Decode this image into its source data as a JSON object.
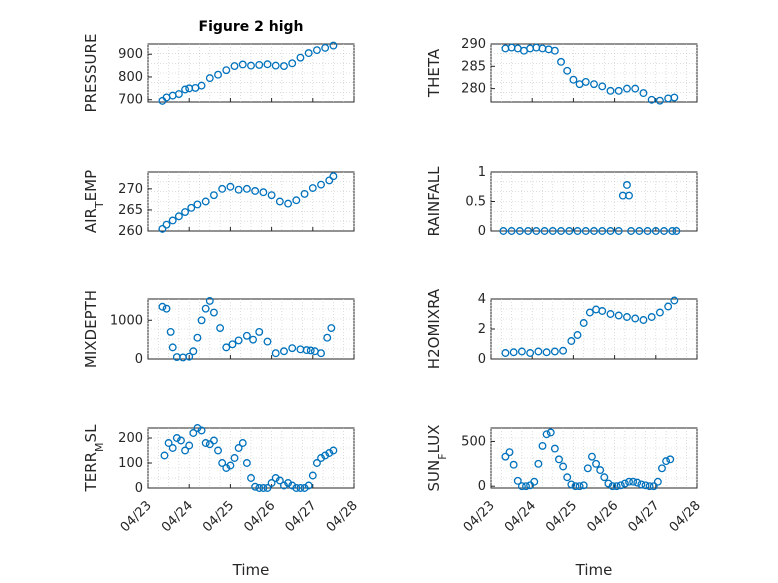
{
  "figure": {
    "title": "Figure 2 high",
    "xlabel": "Time"
  },
  "colors": {
    "series": "#0072BD",
    "axis": "#262626",
    "grid": "#c8c8c8"
  },
  "x_ticks": [
    "04/23",
    "04/24",
    "04/25",
    "04/26",
    "04/27",
    "04/28"
  ],
  "chart_data": [
    {
      "type": "scatter",
      "ylabel": "PRESSURE",
      "ylim": [
        690,
        945
      ],
      "yticks": [
        700,
        800,
        900
      ],
      "grid": "on",
      "xlim": [
        0,
        5
      ],
      "x": [
        0.35,
        0.45,
        0.6,
        0.75,
        0.9,
        1.0,
        1.15,
        1.3,
        1.5,
        1.7,
        1.9,
        2.1,
        2.3,
        2.5,
        2.7,
        2.9,
        3.1,
        3.3,
        3.5,
        3.7,
        3.9,
        4.1,
        4.3,
        4.5
      ],
      "y": [
        695,
        710,
        718,
        725,
        745,
        750,
        752,
        762,
        795,
        810,
        830,
        848,
        855,
        850,
        853,
        856,
        850,
        848,
        860,
        885,
        905,
        918,
        928,
        938
      ]
    },
    {
      "type": "scatter",
      "ylabel": "THETA",
      "ylim": [
        277,
        290
      ],
      "yticks": [
        280,
        285,
        290
      ],
      "grid": "on",
      "xlim": [
        0,
        5
      ],
      "x": [
        0.35,
        0.5,
        0.65,
        0.8,
        0.95,
        1.1,
        1.25,
        1.4,
        1.55,
        1.7,
        1.85,
        2.0,
        2.15,
        2.3,
        2.5,
        2.7,
        2.9,
        3.1,
        3.3,
        3.5,
        3.7,
        3.9,
        4.1,
        4.3,
        4.45
      ],
      "y": [
        289,
        289.2,
        289,
        288.5,
        289,
        289.2,
        289,
        288.8,
        288.5,
        286,
        284,
        282,
        281,
        281.5,
        281,
        280.5,
        279.5,
        279.5,
        280,
        280,
        279,
        277.5,
        277.3,
        277.8,
        278
      ]
    },
    {
      "type": "scatter",
      "ylabel": "AIR_TEMP",
      "ylim": [
        260,
        274
      ],
      "yticks": [
        260,
        265,
        270
      ],
      "grid": "on",
      "xlim": [
        0,
        5
      ],
      "x": [
        0.35,
        0.45,
        0.6,
        0.75,
        0.9,
        1.05,
        1.2,
        1.4,
        1.6,
        1.8,
        2.0,
        2.2,
        2.4,
        2.6,
        2.8,
        3.0,
        3.2,
        3.4,
        3.6,
        3.8,
        4.0,
        4.2,
        4.4,
        4.5
      ],
      "y": [
        260.5,
        261.5,
        262.5,
        263.5,
        264.5,
        265.5,
        266.3,
        267,
        268.5,
        270,
        270.5,
        269.8,
        270,
        269.5,
        269.2,
        268.5,
        267,
        266.5,
        267.3,
        268.8,
        270.2,
        271,
        272,
        273
      ]
    },
    {
      "type": "scatter",
      "ylabel": "RAINFALL",
      "ylim": [
        0,
        1
      ],
      "yticks": [
        0,
        0.5,
        1
      ],
      "grid": "on",
      "xlim": [
        0,
        5
      ],
      "x": [
        0.3,
        0.5,
        0.7,
        0.9,
        1.1,
        1.3,
        1.5,
        1.7,
        1.9,
        2.1,
        2.3,
        2.5,
        2.7,
        2.9,
        3.1,
        3.2,
        3.3,
        3.35,
        3.4,
        3.6,
        3.8,
        4.0,
        4.2,
        4.4,
        4.5
      ],
      "y": [
        0,
        0,
        0,
        0,
        0,
        0,
        0,
        0,
        0,
        0,
        0,
        0,
        0,
        0,
        0,
        0.6,
        0.78,
        0.6,
        0,
        0,
        0,
        0,
        0,
        0,
        0
      ]
    },
    {
      "type": "scatter",
      "ylabel": "MIXDEPTH",
      "ylim": [
        0,
        1550
      ],
      "yticks": [
        0,
        1000
      ],
      "grid": "on",
      "xlim": [
        0,
        5
      ],
      "x": [
        0.35,
        0.45,
        0.55,
        0.6,
        0.7,
        0.85,
        1.0,
        1.1,
        1.2,
        1.3,
        1.4,
        1.5,
        1.6,
        1.75,
        1.9,
        2.05,
        2.2,
        2.4,
        2.55,
        2.7,
        2.9,
        3.1,
        3.3,
        3.5,
        3.7,
        3.85,
        3.95,
        4.05,
        4.2,
        4.35,
        4.45
      ],
      "y": [
        1350,
        1300,
        700,
        300,
        50,
        40,
        60,
        200,
        550,
        1000,
        1300,
        1500,
        1200,
        800,
        300,
        380,
        480,
        600,
        500,
        700,
        450,
        150,
        200,
        280,
        250,
        230,
        220,
        200,
        150,
        550,
        800
      ]
    },
    {
      "type": "scatter",
      "ylabel": "H2OMIXRA",
      "ylim": [
        0,
        4
      ],
      "yticks": [
        0,
        2,
        4
      ],
      "grid": "on",
      "xlim": [
        0,
        5
      ],
      "x": [
        0.35,
        0.55,
        0.75,
        0.95,
        1.15,
        1.35,
        1.55,
        1.75,
        1.95,
        2.1,
        2.25,
        2.4,
        2.55,
        2.7,
        2.9,
        3.1,
        3.3,
        3.5,
        3.7,
        3.9,
        4.1,
        4.3,
        4.45
      ],
      "y": [
        0.4,
        0.45,
        0.5,
        0.4,
        0.5,
        0.45,
        0.5,
        0.55,
        1.2,
        1.6,
        2.4,
        3.1,
        3.3,
        3.2,
        3.0,
        2.9,
        2.8,
        2.7,
        2.6,
        2.8,
        3.1,
        3.5,
        3.9
      ]
    },
    {
      "type": "scatter",
      "ylabel": "TERR_MSL",
      "ylim": [
        0,
        240
      ],
      "yticks": [
        0,
        100,
        200
      ],
      "grid": "on",
      "xlim": [
        0,
        5
      ],
      "x": [
        0.4,
        0.5,
        0.6,
        0.7,
        0.8,
        0.9,
        1.0,
        1.1,
        1.2,
        1.3,
        1.4,
        1.5,
        1.6,
        1.7,
        1.8,
        1.9,
        2.0,
        2.1,
        2.2,
        2.3,
        2.4,
        2.5,
        2.6,
        2.7,
        2.8,
        2.9,
        3.0,
        3.1,
        3.2,
        3.3,
        3.4,
        3.5,
        3.6,
        3.7,
        3.8,
        3.9,
        4.0,
        4.1,
        4.2,
        4.3,
        4.4,
        4.5
      ],
      "y": [
        130,
        180,
        160,
        200,
        190,
        150,
        170,
        220,
        240,
        230,
        180,
        175,
        190,
        150,
        100,
        80,
        90,
        120,
        160,
        180,
        100,
        40,
        5,
        0,
        0,
        0,
        20,
        40,
        30,
        10,
        20,
        10,
        0,
        0,
        0,
        10,
        50,
        100,
        120,
        130,
        140,
        150
      ]
    },
    {
      "type": "scatter",
      "ylabel": "SUN_FLUX",
      "ylim": [
        -20,
        650
      ],
      "yticks": [
        0,
        500
      ],
      "grid": "on",
      "xlim": [
        0,
        5
      ],
      "x": [
        0.35,
        0.45,
        0.55,
        0.65,
        0.75,
        0.85,
        0.95,
        1.05,
        1.15,
        1.25,
        1.35,
        1.45,
        1.55,
        1.65,
        1.75,
        1.85,
        1.95,
        2.05,
        2.15,
        2.25,
        2.35,
        2.45,
        2.55,
        2.65,
        2.75,
        2.85,
        2.95,
        3.05,
        3.15,
        3.25,
        3.35,
        3.45,
        3.55,
        3.65,
        3.75,
        3.85,
        3.95,
        4.05,
        4.15,
        4.25,
        4.35
      ],
      "y": [
        330,
        380,
        240,
        60,
        0,
        0,
        10,
        50,
        250,
        450,
        580,
        600,
        420,
        300,
        220,
        100,
        20,
        0,
        0,
        10,
        200,
        330,
        250,
        180,
        100,
        30,
        0,
        0,
        10,
        30,
        50,
        50,
        40,
        20,
        10,
        0,
        0,
        50,
        200,
        280,
        300
      ]
    }
  ]
}
